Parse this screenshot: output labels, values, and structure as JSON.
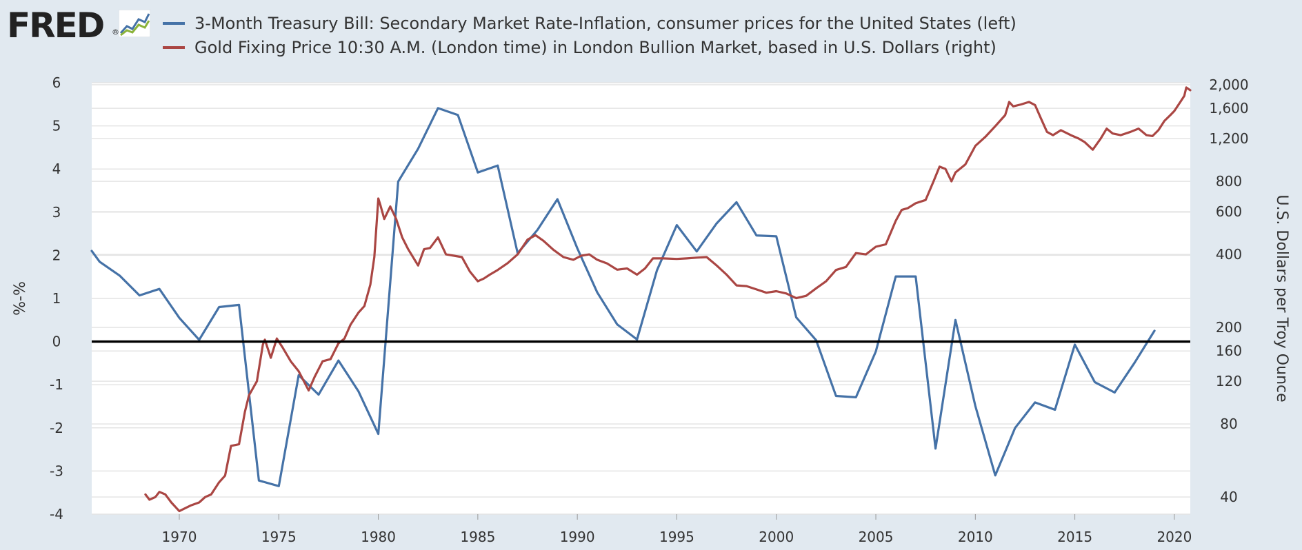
{
  "logo": {
    "text": "FRED",
    "reg_mark": "®"
  },
  "colors": {
    "background": "#e1e9f0",
    "plot_bg": "#ffffff",
    "grid": "#e4e4e4",
    "series1": "#4572a7",
    "series2": "#aa4643",
    "zero_line": "#000000"
  },
  "chart_data": {
    "type": "line",
    "legend_placement": "top",
    "grid": true,
    "x_ticks": [
      "1970",
      "1975",
      "1980",
      "1985",
      "1990",
      "1995",
      "2000",
      "2005",
      "2010",
      "2015",
      "2020"
    ],
    "xlim": [
      1965.6,
      2020.8
    ],
    "left_axis": {
      "label": "%-%",
      "ylim": [
        -4,
        6
      ],
      "ticks": [
        "6",
        "5",
        "4",
        "3",
        "2",
        "1",
        "0",
        "-1",
        "-2",
        "-3",
        "-4"
      ]
    },
    "right_axis": {
      "label": "U.S. Dollars per Troy Ounce",
      "scale": "log",
      "ylim": [
        34,
        2040
      ],
      "ticks": [
        "2,000",
        "1,600",
        "1,200",
        "800",
        "600",
        "400",
        "200",
        "160",
        "120",
        "80",
        "40"
      ]
    },
    "series": [
      {
        "name": "3-Month Treasury Bill: Secondary Market Rate-Inflation, consumer prices for the United States (left)",
        "axis": "left",
        "color": "#4572a7",
        "x": [
          1965.6,
          1966,
          1967,
          1968,
          1969,
          1970,
          1971,
          1972,
          1973,
          1974,
          1975,
          1976,
          1977,
          1978,
          1979,
          1980,
          1981,
          1982,
          1983,
          1984,
          1985,
          1986,
          1987,
          1988,
          1989,
          1990,
          1991,
          1992,
          1993,
          1994,
          1995,
          1996,
          1997,
          1998,
          1999,
          2000,
          2001,
          2002,
          2003,
          2004,
          2005,
          2006,
          2007,
          2008,
          2009,
          2010,
          2011,
          2012,
          2013,
          2014,
          2015,
          2016,
          2017,
          2018,
          2019
        ],
        "y": [
          2.1,
          1.85,
          1.53,
          1.07,
          1.22,
          0.55,
          0.04,
          0.8,
          0.85,
          -3.22,
          -3.35,
          -0.78,
          -1.23,
          -0.44,
          -1.15,
          -2.14,
          3.71,
          4.47,
          5.41,
          5.25,
          3.92,
          4.08,
          2.05,
          2.59,
          3.3,
          2.16,
          1.14,
          0.4,
          0.05,
          1.65,
          2.7,
          2.09,
          2.74,
          3.23,
          2.46,
          2.44,
          0.56,
          0.03,
          -1.26,
          -1.29,
          -0.23,
          1.51,
          1.51,
          -2.48,
          0.5,
          -1.49,
          -3.1,
          -2.0,
          -1.41,
          -1.58,
          -0.07,
          -0.94,
          -1.18,
          -0.49,
          0.25
        ]
      },
      {
        "name": "Gold Fixing Price 10:30 A.M. (London time) in London Bullion Market, based in U.S. Dollars (right)",
        "axis": "right",
        "color": "#aa4643",
        "x": [
          1968.3,
          1968.5,
          1968.8,
          1969.0,
          1969.3,
          1969.6,
          1970.0,
          1970.3,
          1970.6,
          1971.0,
          1971.3,
          1971.6,
          1972.0,
          1972.3,
          1972.6,
          1973.0,
          1973.3,
          1973.5,
          1973.9,
          1974.2,
          1974.3,
          1974.6,
          1974.9,
          1975.2,
          1975.6,
          1976.0,
          1976.5,
          1976.8,
          1977.2,
          1977.6,
          1978.0,
          1978.3,
          1978.6,
          1979.0,
          1979.3,
          1979.6,
          1979.8,
          1980.0,
          1980.1,
          1980.3,
          1980.6,
          1980.9,
          1981.2,
          1981.5,
          1982.0,
          1982.3,
          1982.6,
          1983.0,
          1983.4,
          1983.8,
          1984.2,
          1984.6,
          1985.0,
          1985.3,
          1985.6,
          1986.0,
          1986.5,
          1987.0,
          1987.5,
          1987.9,
          1988.3,
          1988.8,
          1989.3,
          1989.8,
          1990.2,
          1990.6,
          1991.0,
          1991.5,
          1992.0,
          1992.5,
          1993.0,
          1993.4,
          1993.8,
          1994.3,
          1995.0,
          1995.5,
          1996.0,
          1996.5,
          1997.0,
          1997.5,
          1998.0,
          1998.5,
          1999.0,
          1999.5,
          2000.0,
          2000.5,
          2001.0,
          2001.5,
          2002.0,
          2002.5,
          2003.0,
          2003.5,
          2004.0,
          2004.5,
          2005.0,
          2005.5,
          2006.0,
          2006.3,
          2006.6,
          2007.0,
          2007.5,
          2007.9,
          2008.2,
          2008.5,
          2008.8,
          2009.0,
          2009.5,
          2010.0,
          2010.5,
          2011.0,
          2011.5,
          2011.7,
          2011.9,
          2012.3,
          2012.7,
          2013.0,
          2013.3,
          2013.6,
          2013.9,
          2014.3,
          2014.8,
          2015.2,
          2015.5,
          2015.9,
          2016.3,
          2016.6,
          2016.9,
          2017.3,
          2017.8,
          2018.2,
          2018.6,
          2018.9,
          2019.2,
          2019.5,
          2019.8,
          2020.0,
          2020.3,
          2020.5,
          2020.6,
          2020.8
        ],
        "y": [
          41,
          39,
          40,
          42,
          41,
          38,
          35,
          36,
          37,
          38,
          40,
          41,
          46,
          49,
          65,
          66,
          90,
          105,
          120,
          170,
          178,
          150,
          180,
          165,
          145,
          132,
          110,
          125,
          145,
          148,
          172,
          180,
          205,
          230,
          245,
          300,
          390,
          680,
          640,
          560,
          630,
          560,
          470,
          420,
          360,
          420,
          425,
          470,
          400,
          395,
          390,
          340,
          310,
          318,
          330,
          345,
          368,
          400,
          460,
          480,
          455,
          418,
          390,
          380,
          395,
          400,
          380,
          367,
          346,
          350,
          330,
          350,
          385,
          385,
          383,
          385,
          388,
          390,
          360,
          330,
          298,
          296,
          287,
          278,
          282,
          276,
          264,
          270,
          290,
          310,
          345,
          355,
          405,
          400,
          430,
          440,
          550,
          610,
          620,
          650,
          670,
          800,
          920,
          900,
          800,
          870,
          940,
          1120,
          1220,
          1350,
          1500,
          1700,
          1630,
          1660,
          1700,
          1650,
          1450,
          1280,
          1240,
          1300,
          1240,
          1200,
          1160,
          1080,
          1200,
          1320,
          1260,
          1240,
          1280,
          1320,
          1240,
          1230,
          1300,
          1420,
          1500,
          1560,
          1700,
          1800,
          1950,
          1900
        ]
      }
    ]
  }
}
